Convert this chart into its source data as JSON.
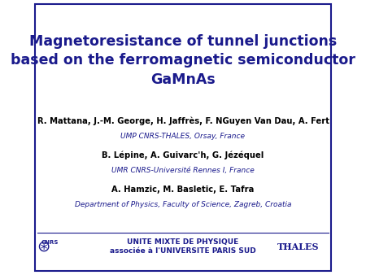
{
  "title_line1": "Magnetoresistance of tunnel junctions",
  "title_line2": "based on the ferromagnetic semiconductor",
  "title_line3": "GaMnAs",
  "title_color": "#1a1a8c",
  "author1": "R. Mattana, J.-M. George, H. Jaffrès, F. NGuyen Van Dau, A. Fert",
  "affil1": "UMP CNRS-THALES, Orsay, France",
  "author2": "B. Lépine, A. Guivarc'h, G. Jézéquel",
  "affil2": "UMR CNRS-Université Rennes I, France",
  "author3": "A. Hamzic, M. Basletic, E. Tafra",
  "affil3": "Department of Physics, Faculty of Science, Zagreb, Croatia",
  "footer_center": "UNITE MIXTE DE PHYSIQUE\nassociée à l'UNIVERSITE PARIS SUD",
  "footer_right": "THALES",
  "author_color": "#000000",
  "affil_color": "#1a1a8c",
  "footer_color": "#1a1a8c",
  "bg_color": "#ffffff",
  "border_color": "#1a1a8c"
}
